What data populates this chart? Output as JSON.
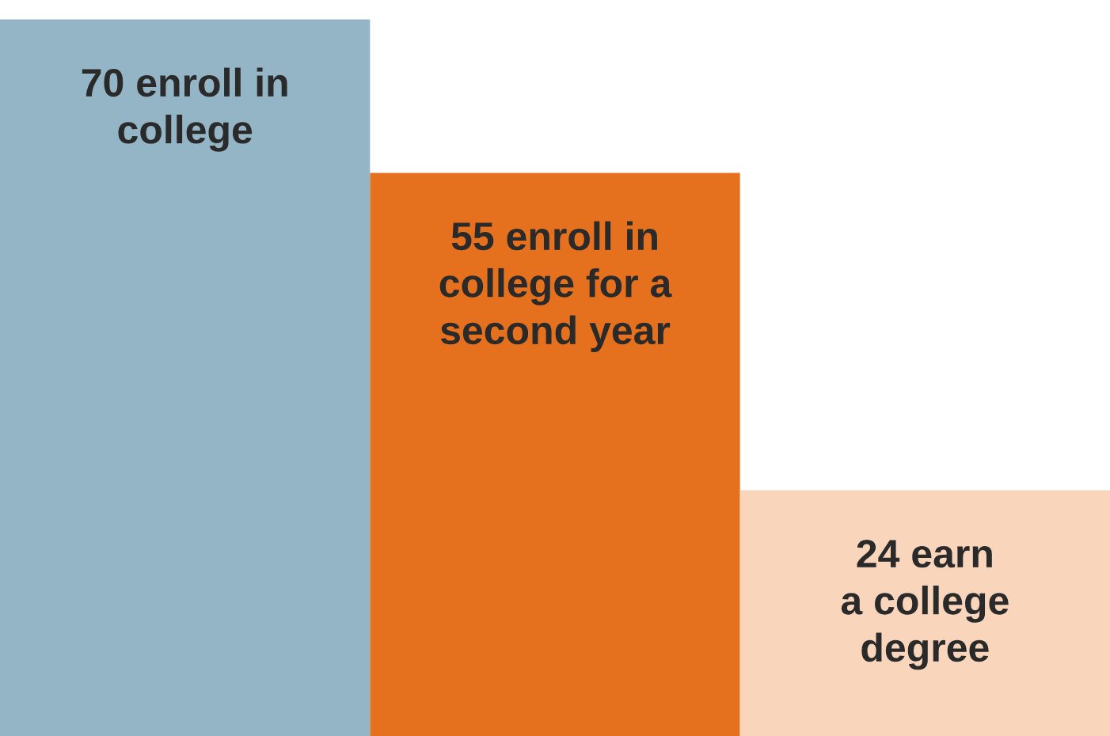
{
  "chart_data": {
    "type": "bar",
    "categories": [
      null,
      null,
      null
    ],
    "values": [
      70,
      55,
      24
    ],
    "colors": [
      "#93b5c6",
      "#e5711e",
      "#f8d5bb"
    ],
    "value_labels": [
      "70 enroll in\ncollege",
      "55 enroll in\ncollege for a\nsecond year",
      "24 earn\na college\ndegree"
    ],
    "grid": false,
    "legend": false
  }
}
